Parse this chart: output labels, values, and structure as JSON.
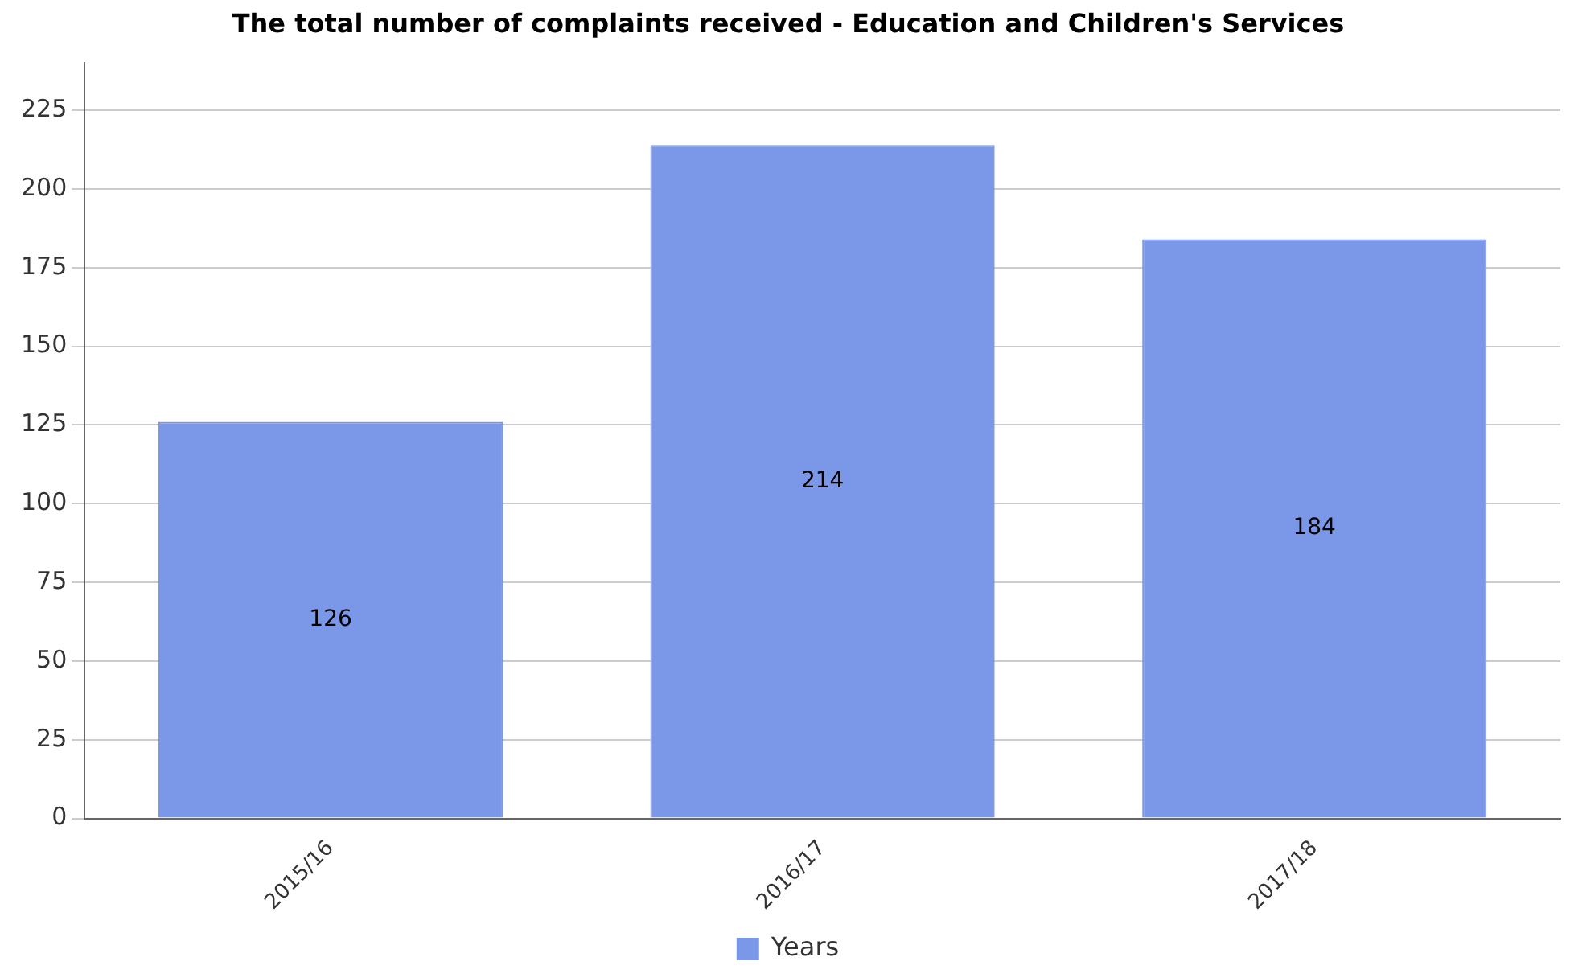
{
  "chart_data": {
    "type": "bar",
    "title": "The total number of complaints received - Education and Children's Services",
    "categories": [
      "2015/16",
      "2016/17",
      "2017/18"
    ],
    "series": [
      {
        "name": "Years",
        "color": "#7b97e8",
        "values": [
          126,
          214,
          184
        ]
      }
    ],
    "ylim": [
      0,
      240
    ],
    "yticks": [
      0,
      25,
      50,
      75,
      100,
      125,
      150,
      175,
      200,
      225
    ],
    "grid": "y",
    "legend": "bottom",
    "data_labels": true
  }
}
